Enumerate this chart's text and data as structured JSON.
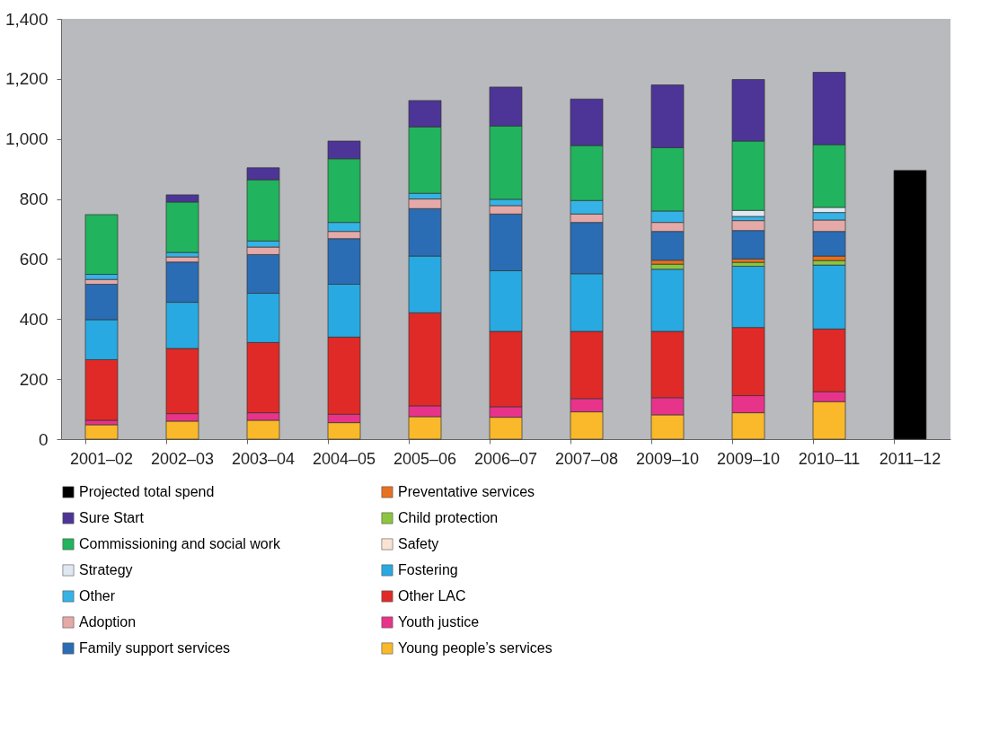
{
  "chart_data": {
    "type": "bar",
    "stacked": true,
    "categories": [
      "2001–02",
      "2002–03",
      "2003–04",
      "2004–05",
      "2005–06",
      "2006–07",
      "2007–08",
      "2009–10",
      "2009–10",
      "2010–11",
      "2011–12"
    ],
    "ylim": [
      0,
      1400
    ],
    "yticks": [
      0,
      200,
      400,
      600,
      800,
      {
        "value": 1000,
        "label": "1,000"
      },
      {
        "value": 1200,
        "label": "1,200"
      },
      {
        "value": 1400,
        "label": "1,400"
      }
    ],
    "grid": false,
    "legend": "bottom",
    "series": [
      {
        "name": "Young people’s services",
        "color": "#f9b92a",
        "values": [
          48,
          60,
          63,
          55,
          75,
          73,
          91,
          81,
          88,
          125,
          null
        ]
      },
      {
        "name": "Youth justice",
        "color": "#e8338a",
        "values": [
          15,
          25,
          25,
          28,
          36,
          35,
          44,
          57,
          57,
          33,
          null
        ]
      },
      {
        "name": "Other LAC",
        "color": "#e02a27",
        "values": [
          202,
          217,
          234,
          257,
          310,
          251,
          224,
          221,
          227,
          209,
          null
        ]
      },
      {
        "name": "Fostering",
        "color": "#29a9e1",
        "values": [
          133,
          154,
          164,
          176,
          189,
          202,
          192,
          207,
          204,
          213,
          null
        ]
      },
      {
        "name": "Safety",
        "color": "#fbe3d4",
        "values": [
          null,
          null,
          null,
          null,
          null,
          null,
          null,
          null,
          null,
          null,
          null
        ]
      },
      {
        "name": "Child protection",
        "color": "#8cc63f",
        "values": [
          null,
          null,
          null,
          null,
          null,
          null,
          null,
          17,
          13,
          15,
          null
        ]
      },
      {
        "name": "Preventative services",
        "color": "#e8711f",
        "values": [
          null,
          null,
          null,
          null,
          null,
          null,
          null,
          13,
          11,
          15,
          null
        ]
      },
      {
        "name": "Family support services",
        "color": "#2a6db5",
        "values": [
          118,
          134,
          129,
          152,
          158,
          189,
          171,
          96,
          95,
          82,
          null
        ]
      },
      {
        "name": "Adoption",
        "color": "#e5a9a8",
        "values": [
          16,
          17,
          25,
          24,
          32,
          28,
          28,
          30,
          33,
          38,
          null
        ]
      },
      {
        "name": "Other",
        "color": "#35b3e6",
        "values": [
          17,
          15,
          20,
          30,
          19,
          21,
          45,
          38,
          14,
          25,
          null
        ]
      },
      {
        "name": "Strategy",
        "color": "#dfe8f2",
        "values": [
          null,
          null,
          null,
          null,
          null,
          null,
          null,
          null,
          20,
          17,
          null
        ]
      },
      {
        "name": "Commissioning and social work",
        "color": "#21b35d",
        "values": [
          199,
          168,
          204,
          212,
          221,
          244,
          183,
          211,
          231,
          209,
          null
        ]
      },
      {
        "name": "Sure Start",
        "color": "#4d3597",
        "values": [
          null,
          24,
          40,
          59,
          88,
          130,
          155,
          209,
          205,
          241,
          null
        ]
      },
      {
        "name": "Projected total spend",
        "color": "#000000",
        "values": [
          null,
          null,
          null,
          null,
          null,
          null,
          null,
          null,
          null,
          null,
          895
        ]
      }
    ]
  }
}
